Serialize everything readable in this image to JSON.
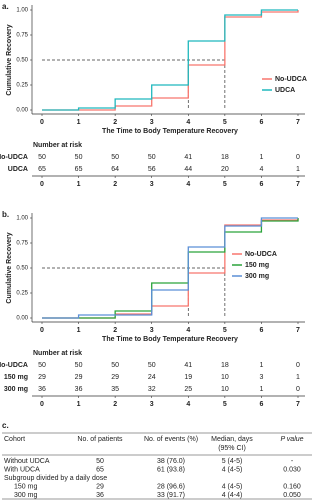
{
  "chart_data": [
    {
      "type": "step",
      "panel_label": "a.",
      "y_label": "Cumulative Recovery",
      "x_label": "The Time to Body Temperature Recovery",
      "x": [
        0,
        1,
        2,
        3,
        4,
        5,
        6,
        7
      ],
      "xlim": [
        0,
        7
      ],
      "ylim": [
        0,
        1
      ],
      "xticks": [
        0,
        1,
        2,
        3,
        4,
        5,
        6,
        7
      ],
      "yticks": [
        {
          "value": 0,
          "label": "0.00"
        },
        {
          "value": 0.25,
          "label": "0.25"
        },
        {
          "value": 0.5,
          "label": "0.50"
        },
        {
          "value": 0.75,
          "label": "0.75"
        },
        {
          "value": 1,
          "label": "1.00"
        }
      ],
      "reference_y": 0.5,
      "median_x": [
        4,
        5
      ],
      "series": [
        {
          "name": "No-UDCA",
          "color": "#f8766d",
          "values": [
            0,
            0,
            0.04,
            0.12,
            0.45,
            0.93,
            0.98,
            1.0
          ]
        },
        {
          "name": "UDCA",
          "color": "#1fb8bd",
          "values": [
            0,
            0.02,
            0.11,
            0.25,
            0.69,
            0.95,
            1.0,
            1.0
          ]
        }
      ],
      "risk_table": {
        "title": "Number at risk",
        "rows": [
          {
            "name": "No-UDCA",
            "values": [
              50,
              50,
              50,
              50,
              41,
              18,
              1,
              0
            ]
          },
          {
            "name": "UDCA",
            "values": [
              65,
              65,
              64,
              56,
              44,
              20,
              4,
              1
            ]
          }
        ]
      }
    },
    {
      "type": "step",
      "panel_label": "b.",
      "y_label": "Cumulative Recovery",
      "x_label": "The Time to Body Temperature Recovery",
      "x": [
        0,
        1,
        2,
        3,
        4,
        5,
        6,
        7
      ],
      "xlim": [
        0,
        7
      ],
      "ylim": [
        0,
        1
      ],
      "xticks": [
        0,
        1,
        2,
        3,
        4,
        5,
        6,
        7
      ],
      "yticks": [
        {
          "value": 0,
          "label": "0.00"
        },
        {
          "value": 0.25,
          "label": "0.25"
        },
        {
          "value": 0.5,
          "label": "0.50"
        },
        {
          "value": 0.75,
          "label": "0.75"
        },
        {
          "value": 1,
          "label": "1.00"
        }
      ],
      "reference_y": 0.5,
      "median_x": [
        4,
        5
      ],
      "series": [
        {
          "name": "No-UDCA",
          "color": "#f8766d",
          "values": [
            0,
            0,
            0.04,
            0.12,
            0.45,
            0.93,
            0.98,
            1.0
          ]
        },
        {
          "name": "150 mg",
          "color": "#2aa33a",
          "values": [
            0,
            0,
            0.07,
            0.35,
            0.66,
            0.86,
            0.97,
            1.0
          ]
        },
        {
          "name": "300 mg",
          "color": "#5b8fd6",
          "values": [
            0,
            0.03,
            0.03,
            0.28,
            0.71,
            0.92,
            1.0,
            1.0
          ]
        }
      ],
      "risk_table": {
        "title": "Number at risk",
        "rows": [
          {
            "name": "No-UDCA",
            "values": [
              50,
              50,
              50,
              50,
              41,
              18,
              1,
              0
            ]
          },
          {
            "name": "150 mg",
            "values": [
              29,
              29,
              29,
              24,
              19,
              10,
              3,
              1
            ]
          },
          {
            "name": "300 mg",
            "values": [
              36,
              36,
              35,
              32,
              25,
              10,
              1,
              0
            ]
          }
        ]
      }
    }
  ],
  "table": {
    "label": "c.",
    "header": [
      "Cohort",
      "No. of patients",
      "No. of events (%)",
      [
        "Median, days",
        "(95% CI)"
      ],
      "P value"
    ],
    "rows": [
      [
        "Without UDCA",
        "50",
        "38 (76.0)",
        "5 (4-5)",
        "-"
      ],
      [
        "With UDCA",
        "65",
        "61 (93.8)",
        "4 (4-5)",
        "0.030"
      ],
      [
        "Subgroup divided by a daily dose"
      ],
      [
        "150 mg",
        "29",
        "28 (96.6)",
        "4 (4-5)",
        "0.160"
      ],
      [
        "300 mg",
        "36",
        "33 (91.7)",
        "4 (4-4)",
        "0.050"
      ]
    ]
  }
}
